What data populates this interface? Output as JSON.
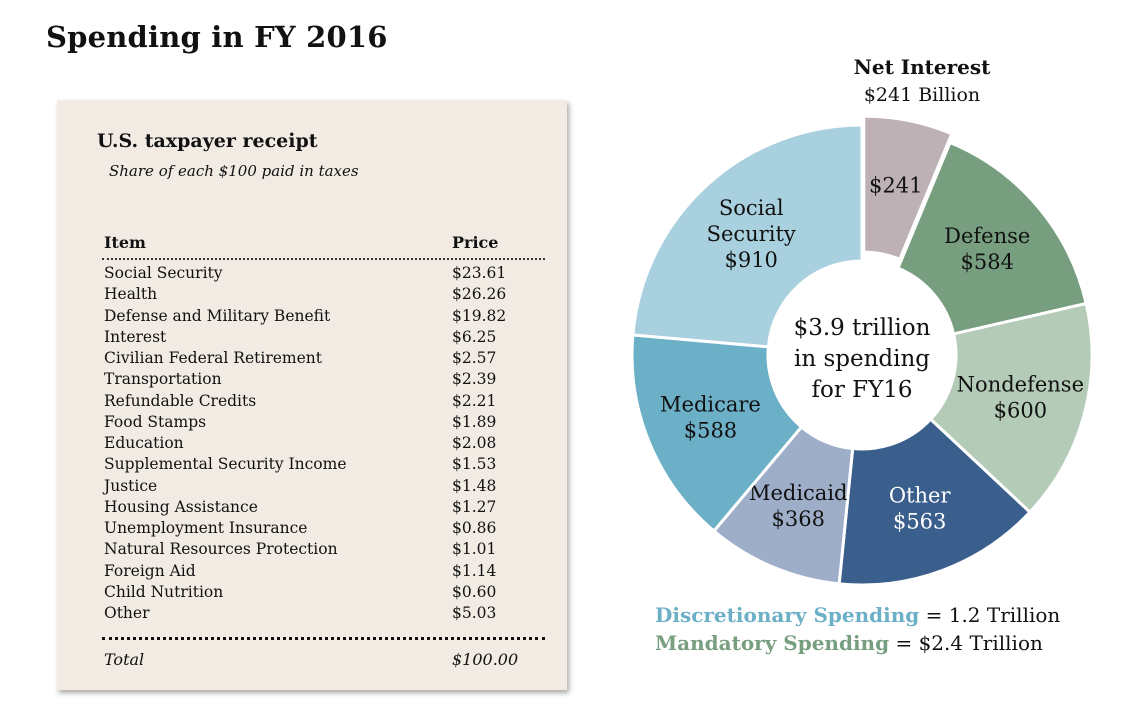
{
  "title": "Spending in FY 2016",
  "receipt": {
    "title": "U.S. taxpayer receipt",
    "subtitle": "Share of each $100 paid in taxes",
    "col_item": "Item",
    "col_price": "Price",
    "rows": [
      {
        "item": "Social Security",
        "price": "$23.61"
      },
      {
        "item": "Health",
        "price": "$26.26"
      },
      {
        "item": "Defense and Military Benefit",
        "price": "$19.82"
      },
      {
        "item": "Interest",
        "price": "$6.25"
      },
      {
        "item": "Civilian Federal Retirement",
        "price": "$2.57"
      },
      {
        "item": "Transportation",
        "price": "$2.39"
      },
      {
        "item": "Refundable Credits",
        "price": "$2.21"
      },
      {
        "item": "Food Stamps",
        "price": "$1.89"
      },
      {
        "item": "Education",
        "price": "$2.08"
      },
      {
        "item": "Supplemental Security Income",
        "price": "$1.53"
      },
      {
        "item": "Justice",
        "price": "$1.48"
      },
      {
        "item": "Housing Assistance",
        "price": "$1.27"
      },
      {
        "item": "Unemployment Insurance",
        "price": "$0.86"
      },
      {
        "item": "Natural Resources Protection",
        "price": "$1.01"
      },
      {
        "item": "Foreign Aid",
        "price": "$1.14"
      },
      {
        "item": "Child Nutrition",
        "price": "$0.60"
      },
      {
        "item": "Other",
        "price": "$5.03"
      }
    ],
    "total_label": "Total",
    "total_value": "$100.00"
  },
  "chart_data": {
    "type": "pie",
    "variant": "donut",
    "center_text": [
      "$3.9 trillion",
      "in spending",
      "for FY16"
    ],
    "callout": {
      "title": "Net Interest",
      "subtitle": "$241 Billion"
    },
    "slices": [
      {
        "name": "Net Interest",
        "value": 241,
        "lines": [
          "$241"
        ],
        "color": "#bdb1b5",
        "text_color": "#111111",
        "exploded": true
      },
      {
        "name": "Defense",
        "value": 584,
        "lines": [
          "Defense",
          "$584"
        ],
        "color": "#789e80",
        "text_color": "#111111",
        "exploded": false
      },
      {
        "name": "Nondefense",
        "value": 600,
        "lines": [
          "Nondefense",
          "$600"
        ],
        "color": "#b3cbb7",
        "text_color": "#111111",
        "exploded": false
      },
      {
        "name": "Other",
        "value": 563,
        "lines": [
          "Other",
          "$563"
        ],
        "color": "#3b5f8c",
        "text_color": "#ffffff",
        "exploded": false
      },
      {
        "name": "Medicaid",
        "value": 368,
        "lines": [
          "Medicaid",
          "$368"
        ],
        "color": "#9eaec8",
        "text_color": "#111111",
        "exploded": false
      },
      {
        "name": "Medicare",
        "value": 588,
        "lines": [
          "Medicare",
          "$588"
        ],
        "color": "#6cb0c8",
        "text_color": "#111111",
        "exploded": false
      },
      {
        "name": "Social Security",
        "value": 910,
        "lines": [
          "Social",
          "Security",
          "$910"
        ],
        "color": "#a9d0de",
        "text_color": "#111111",
        "exploded": false
      }
    ],
    "legend": [
      {
        "label": "Discretionary Spending",
        "suffix": " = 1.2 Trillion",
        "color": "#6cb0c8"
      },
      {
        "label": "Mandatory Spending",
        "suffix": " = $2.4 Trillion",
        "color": "#789e80"
      }
    ]
  }
}
